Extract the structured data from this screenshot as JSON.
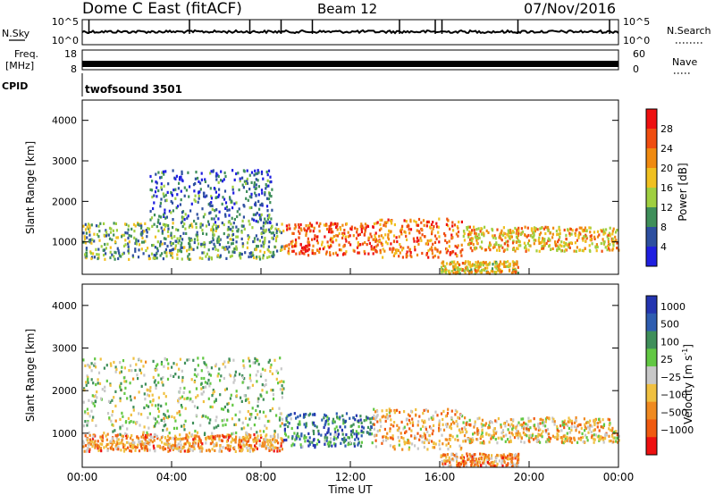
{
  "header": {
    "title": "Dome C East (fitACF)",
    "beam": "Beam 12",
    "date": "07/Nov/2016"
  },
  "status_strips": {
    "nsky": {
      "label": "N.Sky",
      "ticks": [
        "10^5",
        "10^0"
      ]
    },
    "nsearch": {
      "label": "N.Search",
      "ticks": [
        "10^5",
        "10^0"
      ]
    },
    "freq": {
      "label_line1": "Freq.",
      "label_line2": "[MHz]",
      "ticks": [
        "18",
        "8"
      ]
    },
    "nave": {
      "label": "Nave",
      "ticks": [
        "60",
        "0"
      ]
    },
    "cpid": {
      "label": "CPID",
      "program": "twofsound 3501"
    }
  },
  "colors": {
    "power": [
      "#1f1fe0",
      "#2d4fa0",
      "#3f8f5a",
      "#9fcf40",
      "#f0c020",
      "#f08a10",
      "#f04d10",
      "#ee1010"
    ],
    "velocity": [
      "#2435b0",
      "#2e5db0",
      "#3f8f5a",
      "#62c843",
      "#c8c8c8",
      "#f0c040",
      "#f08a20",
      "#f05a10",
      "#ee1010"
    ]
  },
  "chart_data": [
    {
      "type": "heatmap",
      "name": "power",
      "ylabel": "Slant Range [km]",
      "yticks": [
        "1000",
        "2000",
        "3000",
        "4000"
      ],
      "ylim": [
        200,
        4500
      ],
      "xlim_hours": [
        0,
        24
      ],
      "colorbar": {
        "label": "Power [dB]",
        "ticks": [
          "4",
          "8",
          "12",
          "16",
          "20",
          "24",
          "28"
        ],
        "range": [
          0,
          32
        ]
      },
      "regions": [
        {
          "t0": 0.0,
          "t1": 9.0,
          "r0": 600,
          "r1": 1500,
          "level": 0.35
        },
        {
          "t0": 3.0,
          "t1": 8.5,
          "r0": 1500,
          "r1": 2800,
          "level": 0.2
        },
        {
          "t0": 9.0,
          "t1": 13.0,
          "r0": 700,
          "r1": 1500,
          "level": 0.8
        },
        {
          "t0": 13.0,
          "t1": 17.0,
          "r0": 650,
          "r1": 1600,
          "level": 0.75
        },
        {
          "t0": 17.0,
          "t1": 24.0,
          "r0": 800,
          "r1": 1400,
          "level": 0.6
        },
        {
          "t0": 16.0,
          "t1": 19.5,
          "r0": 250,
          "r1": 550,
          "level": 0.55
        }
      ]
    },
    {
      "type": "heatmap",
      "name": "velocity",
      "xlabel": "Time UT",
      "ylabel": "Slant Range [km]",
      "yticks": [
        "1000",
        "2000",
        "3000",
        "4000"
      ],
      "xticks": [
        "00:00",
        "04:00",
        "08:00",
        "12:00",
        "16:00",
        "20:00",
        "00:00"
      ],
      "ylim": [
        200,
        4500
      ],
      "xlim_hours": [
        0,
        24
      ],
      "colorbar": {
        "label": "Velocity [m s",
        "label_sup": "-1",
        "label_end": "]",
        "ticks": [
          "1000",
          "500",
          "100",
          "25",
          "−25",
          "−100",
          "−500",
          "−1000"
        ]
      },
      "regions": [
        {
          "t0": 0.0,
          "t1": 9.0,
          "r0": 600,
          "r1": 1000,
          "level": 0.7
        },
        {
          "t0": 0.0,
          "t1": 9.0,
          "r0": 1000,
          "r1": 2800,
          "level": 0.45
        },
        {
          "t0": 9.0,
          "t1": 13.0,
          "r0": 700,
          "r1": 1500,
          "level": 0.25
        },
        {
          "t0": 13.0,
          "t1": 17.0,
          "r0": 650,
          "r1": 1600,
          "level": 0.65
        },
        {
          "t0": 17.0,
          "t1": 24.0,
          "r0": 800,
          "r1": 1400,
          "level": 0.6
        },
        {
          "t0": 16.0,
          "t1": 19.5,
          "r0": 250,
          "r1": 550,
          "level": 0.7
        }
      ]
    }
  ]
}
